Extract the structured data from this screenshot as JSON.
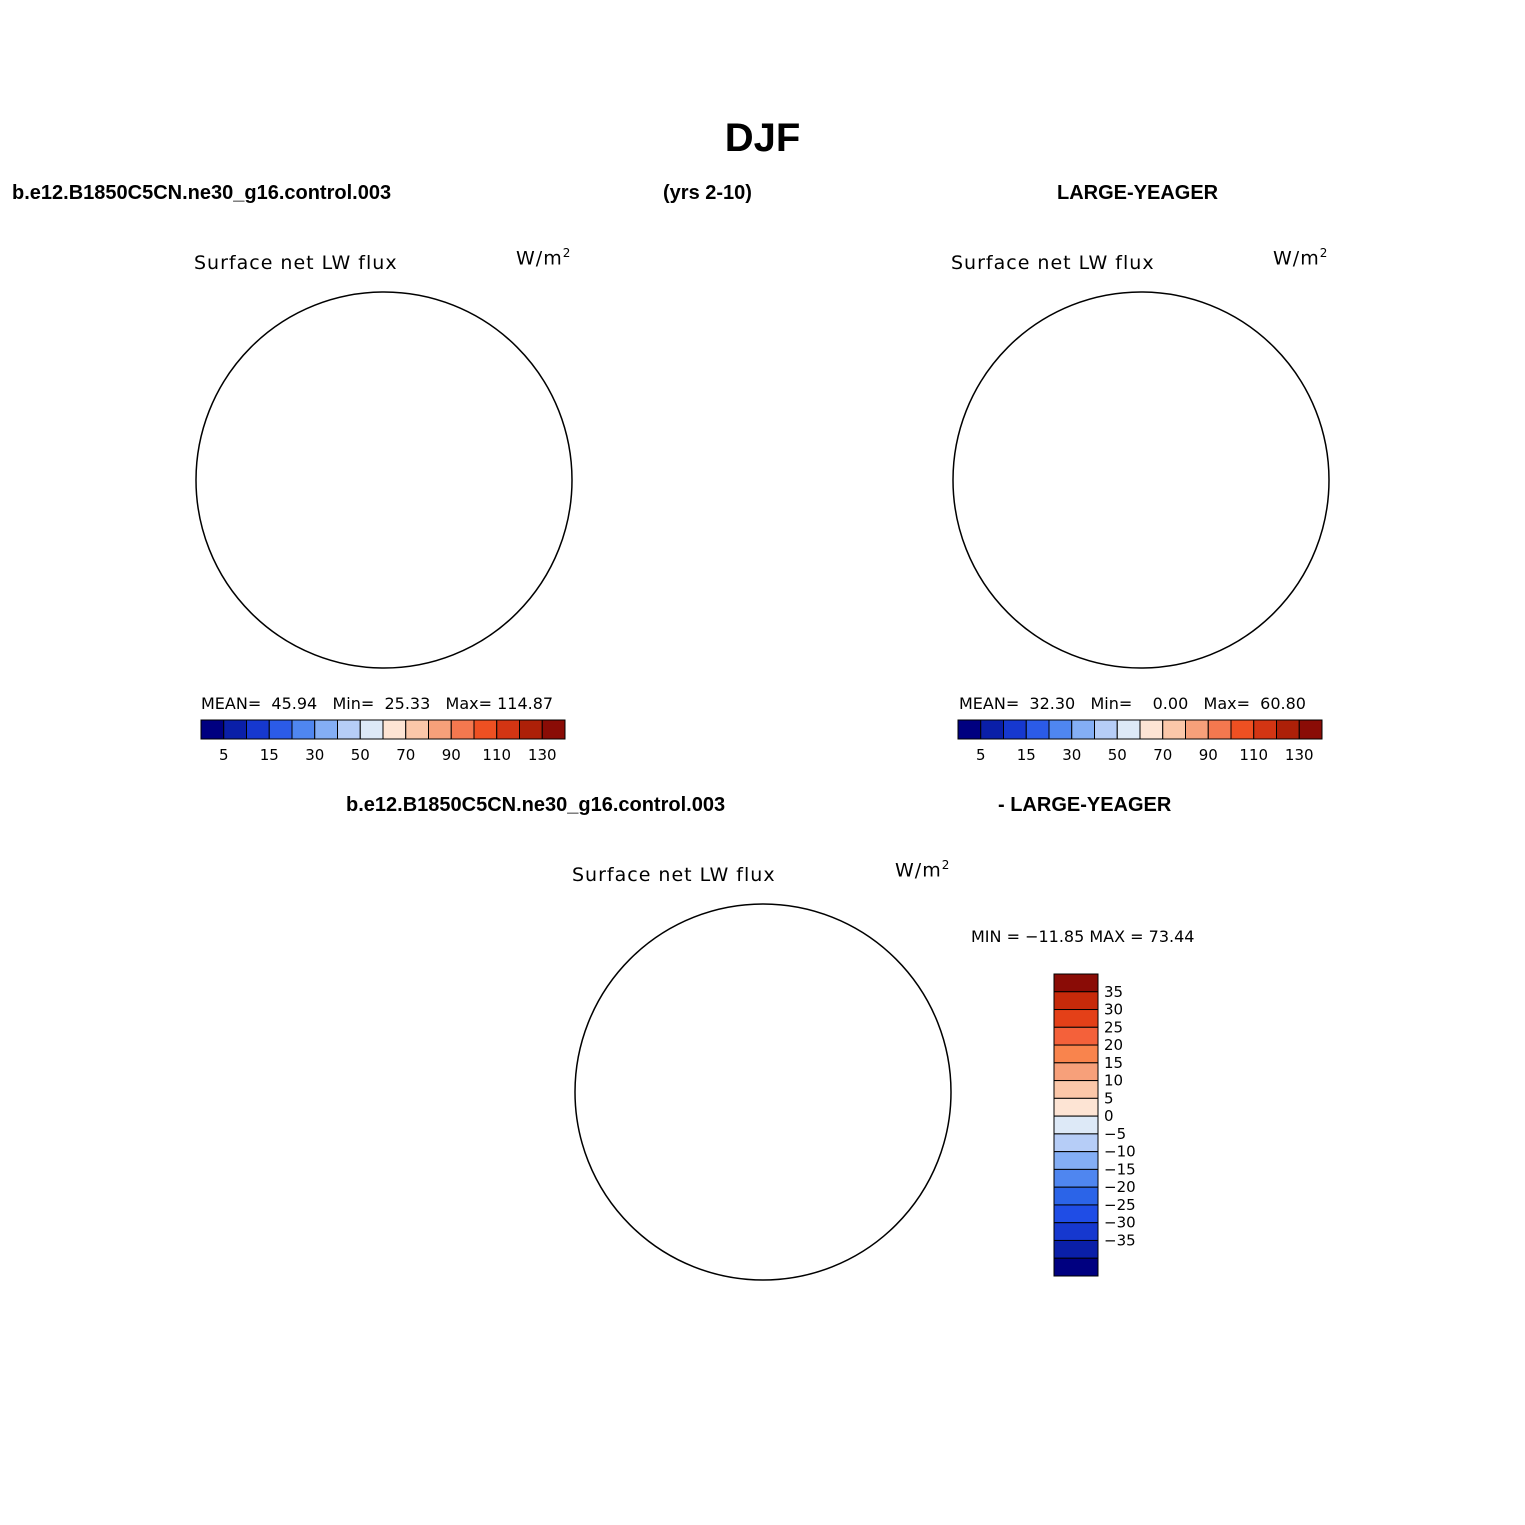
{
  "main_title": "DJF",
  "header": {
    "case1": "b.e12.B1850C5CN.ne30_g16.control.003",
    "years": "(yrs 2-10)",
    "case2": "LARGE-YEAGER",
    "diff_left": "b.e12.B1850C5CN.ne30_g16.control.003",
    "diff_right": "- LARGE-YEAGER"
  },
  "panels": [
    {
      "title": "Surface net LW flux",
      "units_base": "W/m",
      "units_exp": "2",
      "stats": {
        "mean_label": "MEAN=",
        "mean": "45.94",
        "min_label": "Min=",
        "min": "25.33",
        "max_label": "Max=",
        "max": "114.87"
      }
    },
    {
      "title": "Surface net LW flux",
      "units_base": "W/m",
      "units_exp": "2",
      "stats": {
        "mean_label": "MEAN=",
        "mean": "32.30",
        "min_label": "Min=",
        "min": "0.00",
        "max_label": "Max=",
        "max": "60.80"
      }
    },
    {
      "title": "Surface net LW flux",
      "units_base": "W/m",
      "units_exp": "2",
      "stats_text": "MIN = −11.85 MAX =  73.44"
    }
  ],
  "colorbar_abs": {
    "colors": [
      "#000080",
      "#0a1fa8",
      "#1638cf",
      "#2b5be8",
      "#4f86f0",
      "#84aef5",
      "#b6cdf7",
      "#dde9f7",
      "#fde4d4",
      "#fbc7a9",
      "#f7a07a",
      "#f4784f",
      "#ee5022",
      "#d33513",
      "#ad2008",
      "#8a0c06"
    ],
    "labels": [
      "5",
      "15",
      "30",
      "50",
      "70",
      "90",
      "110",
      "130"
    ]
  },
  "colorbar_diff": {
    "colors": [
      "#000080",
      "#0a1fa8",
      "#1638cf",
      "#1f4de6",
      "#2b64e8",
      "#4f86f0",
      "#84aef5",
      "#b6cdf7",
      "#dde9f7",
      "#fde4d4",
      "#fbc7a9",
      "#f7a07a",
      "#f9844d",
      "#f4613a",
      "#e44018",
      "#c72a0a",
      "#8a0c06"
    ],
    "labels": [
      "35",
      "30",
      "25",
      "20",
      "15",
      "10",
      "5",
      "0",
      "−5",
      "−10",
      "−15",
      "−20",
      "−25",
      "−30",
      "−35"
    ]
  },
  "map_colors": {
    "ocean_base": "#84aef5",
    "ocean_dark": "#4f86f0",
    "ocean_light": "#b6cdf7",
    "ice_margin": "#dde9f7",
    "land_warm": "#fbc7a9",
    "land_pale": "#fde4d4",
    "deep_blue": "#0a1fa8",
    "mid_blue": "#2b5be8",
    "diff_red_dark": "#8a0c06",
    "diff_red": "#d33513",
    "diff_orange": "#f7a07a",
    "diff_pale": "#fde4d4",
    "diff_blue_pale": "#dde9f7",
    "diff_blue": "#b6cdf7"
  }
}
